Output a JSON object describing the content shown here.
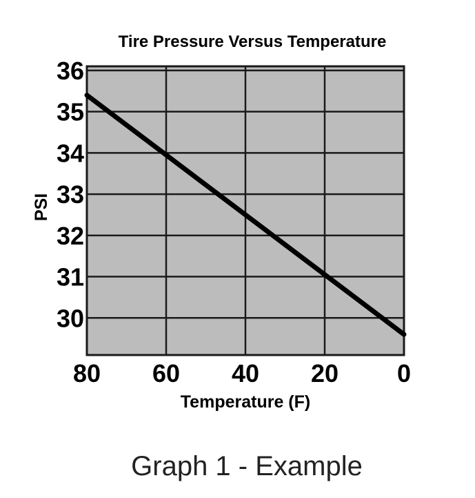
{
  "caption": "Graph 1 - Example",
  "chart_data": {
    "type": "line",
    "title": "Tire Pressure Versus Temperature",
    "xlabel": "Temperature (F)",
    "ylabel": "PSI",
    "x_ticks": [
      "80",
      "60",
      "40",
      "20",
      "0"
    ],
    "y_ticks": [
      "30",
      "31",
      "32",
      "33",
      "34",
      "35",
      "36"
    ],
    "xlim": [
      80,
      0
    ],
    "ylim": [
      29.1,
      36.1
    ],
    "grid": true,
    "series": [
      {
        "x": [
          80,
          0
        ],
        "y": [
          35.4,
          29.6
        ]
      }
    ],
    "colors": {
      "plot_bg": "#bcbcbc",
      "grid": "#1a1a1a",
      "line": "#000000"
    }
  }
}
